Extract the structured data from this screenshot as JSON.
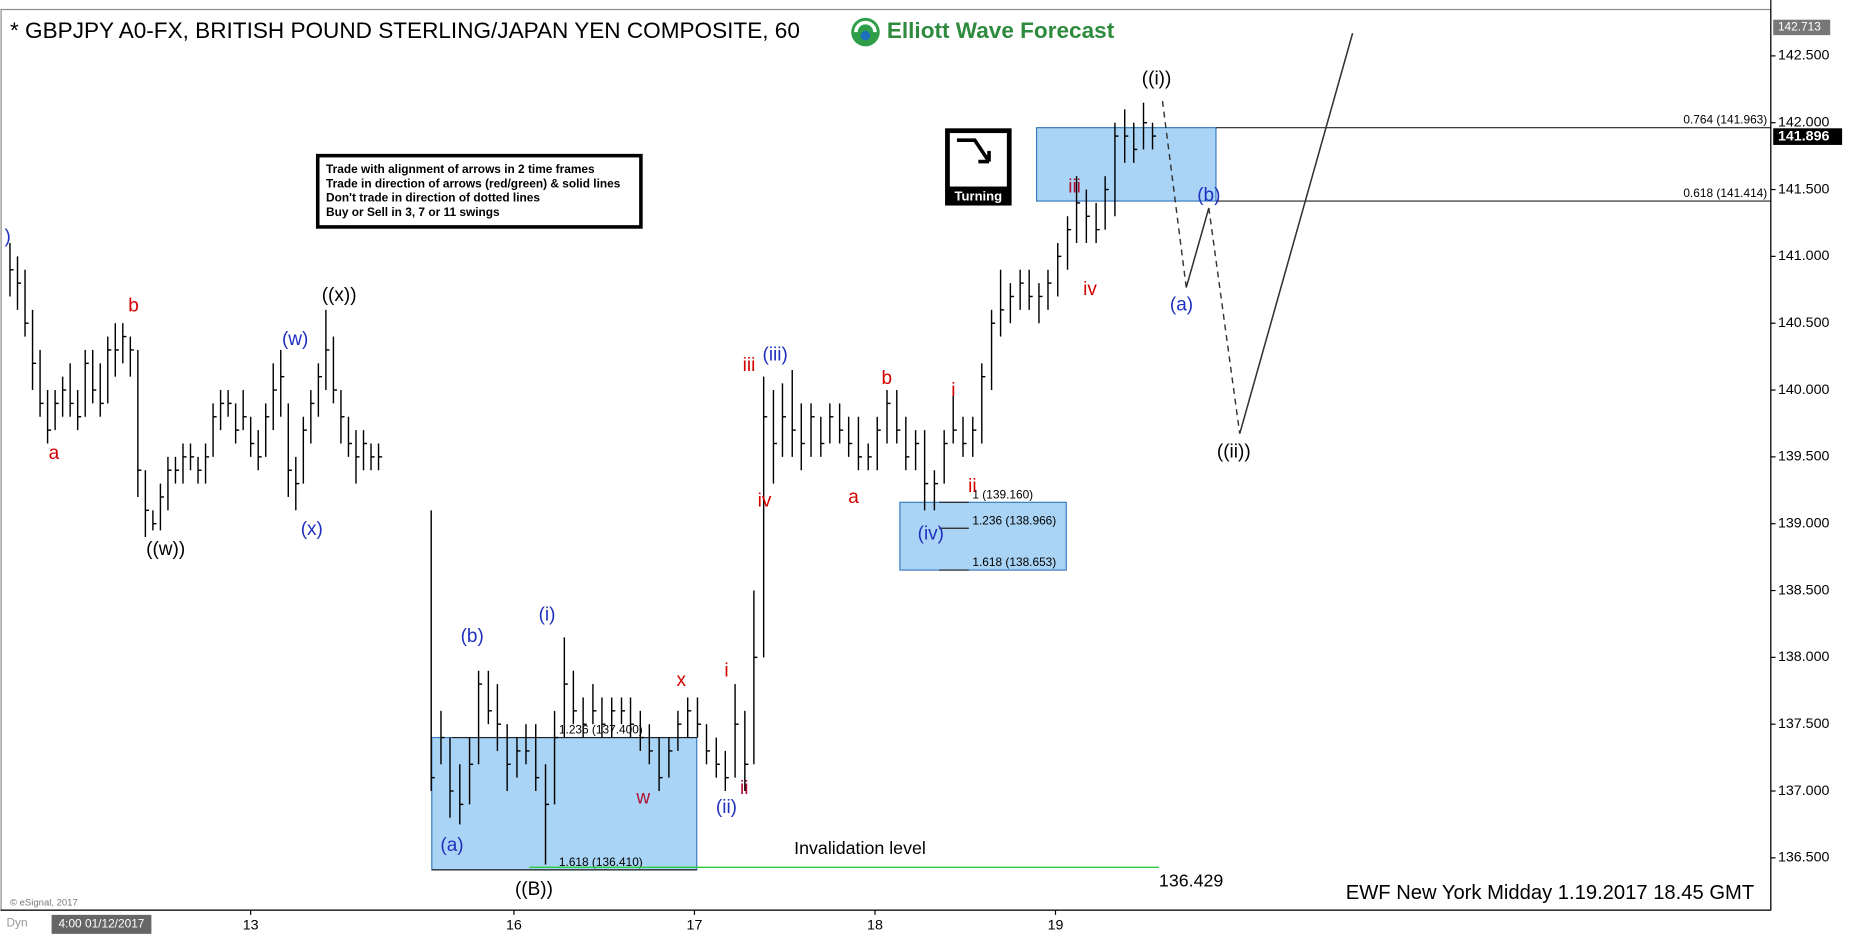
{
  "header": {
    "title": "* GBPJPY A0-FX, BRITISH POUND STERLING/JAPAN YEN COMPOSITE, 60",
    "logo": "Elliott Wave Forecast"
  },
  "rules": [
    "Trade with alignment of arrows in 2 time frames",
    "Trade in direction of arrows (red/green) & solid lines",
    "Don't trade in direction of dotted lines",
    "Buy or Sell in 3, 7 or 11 swings"
  ],
  "turning": "Turning",
  "footer": {
    "stamp": "EWF New York Midday 1.19.2017 18.45 GMT",
    "copyright": "© eSignal, 2017",
    "dyn": "Dyn",
    "start": "4:00 01/12/2017"
  },
  "chart_data": {
    "type": "ohlc",
    "x": [
      0,
      1,
      2,
      3,
      4,
      5,
      6,
      7,
      8,
      9,
      10,
      11,
      12,
      13,
      14,
      15,
      16,
      17,
      18,
      19,
      20,
      21,
      22,
      23,
      24,
      25,
      26,
      27,
      28,
      29,
      30,
      31,
      32,
      33,
      34,
      35,
      36,
      37,
      38,
      39,
      40,
      41,
      42,
      43,
      44,
      45,
      46,
      47,
      48,
      49,
      56.0,
      57.3,
      58.5,
      59.8,
      61.1,
      62.3,
      63.6,
      64.8,
      66.1,
      67.4,
      68.6,
      69.9,
      71.2,
      72.4,
      73.7,
      74.9,
      76.2,
      77.5,
      78.7,
      80.0,
      81.3,
      82.5,
      83.8,
      85.0,
      86.3,
      87.6,
      88.8,
      90.1,
      91.4,
      92.6,
      93.9,
      95.1,
      96.4,
      97.7,
      98.9,
      100.2,
      101.5,
      102.7,
      104.0,
      105.2,
      106.5,
      107.8,
      109.0,
      110.3,
      111.5,
      112.8,
      114.1,
      115.3,
      116.6,
      117.9,
      119.1,
      120.4,
      121.6,
      122.9,
      124.2,
      125.4,
      126.7,
      128.0,
      129.2,
      130.5,
      131.7,
      133.0,
      134.3,
      135.5,
      136.8,
      138.0,
      139.3,
      140.6,
      141.8,
      143.1,
      144.4,
      145.6,
      146.9,
      148.2,
      149.4,
      150.7,
      151.9
    ],
    "high": [
      141.1,
      141.0,
      140.9,
      140.6,
      140.3,
      140.0,
      140.0,
      140.1,
      140.2,
      140.0,
      140.3,
      140.3,
      140.2,
      140.4,
      140.5,
      140.5,
      140.4,
      140.3,
      139.4,
      139.1,
      139.3,
      139.5,
      139.5,
      139.6,
      139.6,
      139.5,
      139.6,
      139.9,
      140.0,
      140.0,
      139.9,
      140.0,
      139.8,
      139.7,
      139.9,
      140.2,
      140.3,
      139.9,
      139.5,
      139.8,
      140.0,
      140.2,
      140.6,
      140.4,
      140.0,
      139.8,
      139.7,
      139.7,
      139.6,
      139.6,
      139.1,
      137.6,
      137.4,
      137.2,
      137.4,
      137.9,
      137.9,
      137.8,
      137.5,
      137.4,
      137.5,
      137.5,
      137.2,
      137.6,
      138.15,
      137.9,
      137.7,
      137.8,
      137.7,
      137.7,
      137.7,
      137.7,
      137.6,
      137.5,
      137.4,
      137.4,
      137.6,
      137.7,
      137.7,
      137.5,
      137.4,
      137.3,
      137.8,
      137.6,
      138.5,
      140.1,
      140.0,
      140.05,
      140.15,
      139.9,
      139.9,
      139.8,
      139.9,
      139.9,
      139.8,
      139.8,
      139.6,
      139.8,
      140.0,
      140.0,
      139.8,
      139.7,
      139.7,
      139.4,
      139.7,
      140.0,
      139.8,
      139.8,
      140.2,
      140.6,
      140.9,
      140.8,
      140.9,
      140.9,
      140.8,
      140.9,
      141.1,
      141.3,
      141.6,
      141.5,
      141.4,
      141.6,
      142.0,
      142.1,
      142.0,
      142.15,
      142.0
    ],
    "low": [
      140.7,
      140.6,
      140.4,
      140.0,
      139.8,
      139.6,
      139.7,
      139.8,
      139.8,
      139.7,
      139.8,
      139.9,
      139.8,
      139.9,
      140.1,
      140.2,
      140.1,
      139.2,
      138.9,
      138.95,
      138.95,
      139.1,
      139.3,
      139.3,
      139.4,
      139.3,
      139.3,
      139.5,
      139.7,
      139.8,
      139.6,
      139.7,
      139.5,
      139.4,
      139.5,
      139.7,
      139.8,
      139.2,
      139.1,
      139.3,
      139.6,
      139.8,
      140.0,
      139.9,
      139.6,
      139.5,
      139.3,
      139.4,
      139.4,
      139.4,
      137.0,
      137.2,
      136.8,
      136.75,
      136.9,
      137.2,
      137.5,
      137.3,
      137.0,
      137.1,
      137.2,
      137.0,
      136.45,
      136.9,
      137.4,
      137.5,
      137.4,
      137.5,
      137.4,
      137.4,
      137.5,
      137.4,
      137.3,
      137.2,
      137.0,
      137.1,
      137.3,
      137.4,
      137.4,
      137.2,
      137.1,
      137.0,
      137.1,
      137.0,
      137.2,
      138.0,
      139.3,
      139.5,
      139.5,
      139.4,
      139.5,
      139.5,
      139.6,
      139.6,
      139.5,
      139.4,
      139.4,
      139.4,
      139.6,
      139.6,
      139.4,
      139.4,
      139.1,
      139.1,
      139.3,
      139.6,
      139.5,
      139.5,
      139.6,
      140.0,
      140.4,
      140.5,
      140.6,
      140.6,
      140.5,
      140.6,
      140.7,
      140.9,
      141.1,
      141.1,
      141.1,
      141.2,
      141.3,
      141.7,
      141.7,
      141.8,
      141.8
    ],
    "close": [
      140.9,
      140.8,
      140.5,
      140.2,
      139.9,
      139.7,
      139.9,
      140.0,
      139.9,
      139.8,
      140.2,
      140.0,
      139.9,
      140.3,
      140.3,
      140.4,
      140.3,
      139.4,
      139.1,
      139.0,
      139.2,
      139.4,
      139.4,
      139.5,
      139.5,
      139.4,
      139.5,
      139.8,
      139.9,
      139.9,
      139.7,
      139.8,
      139.6,
      139.5,
      139.8,
      140.0,
      140.1,
      139.4,
      139.3,
      139.7,
      139.9,
      140.1,
      140.3,
      140.0,
      139.8,
      139.6,
      139.5,
      139.6,
      139.5,
      139.5,
      137.1,
      137.4,
      137.0,
      136.9,
      137.2,
      137.8,
      137.6,
      137.5,
      137.2,
      137.3,
      137.3,
      137.1,
      136.9,
      137.4,
      137.8,
      137.6,
      137.5,
      137.6,
      137.5,
      137.6,
      137.6,
      137.5,
      137.4,
      137.3,
      137.1,
      137.3,
      137.5,
      137.6,
      137.5,
      137.3,
      137.2,
      137.1,
      137.5,
      137.2,
      138.0,
      139.8,
      139.6,
      139.8,
      139.7,
      139.6,
      139.8,
      139.6,
      139.8,
      139.7,
      139.6,
      139.5,
      139.5,
      139.7,
      139.9,
      139.7,
      139.5,
      139.6,
      139.3,
      139.3,
      139.6,
      139.7,
      139.6,
      139.7,
      140.1,
      140.5,
      140.6,
      140.7,
      140.8,
      140.7,
      140.7,
      140.8,
      141.0,
      141.2,
      141.4,
      141.3,
      141.2,
      141.5,
      141.9,
      141.9,
      141.8,
      142.0,
      141.9
    ],
    "xlim": [
      -1.26,
      234.1
    ],
    "ylim": [
      136.109,
      142.847
    ],
    "xticks": [
      {
        "value": 32,
        "label": "13"
      },
      {
        "value": 67,
        "label": "16"
      },
      {
        "value": 91,
        "label": "17"
      },
      {
        "value": 115,
        "label": "18"
      },
      {
        "value": 139,
        "label": "19"
      }
    ],
    "yticks": [
      {
        "value": 136.5,
        "label": "136.500"
      },
      {
        "value": 137,
        "label": "137.000"
      },
      {
        "value": 137.5,
        "label": "137.500"
      },
      {
        "value": 138,
        "label": "138.000"
      },
      {
        "value": 138.5,
        "label": "138.500"
      },
      {
        "value": 139,
        "label": "139.000"
      },
      {
        "value": 139.5,
        "label": "139.500"
      },
      {
        "value": 140,
        "label": "140.000"
      },
      {
        "value": 140.5,
        "label": "140.500"
      },
      {
        "value": 141,
        "label": "141.000"
      },
      {
        "value": 141.5,
        "label": "141.500"
      },
      {
        "value": 142,
        "label": "142.000"
      },
      {
        "value": 142.5,
        "label": "142.500"
      }
    ],
    "top_price": 142.713,
    "last_price": 141.896,
    "fib_levels": [
      {
        "value": 141.963,
        "label": "0.764 (141.963)"
      },
      {
        "value": 141.414,
        "label": "0.618 (141.414)"
      },
      {
        "value": 139.16,
        "label": "1 (139.160)"
      },
      {
        "value": 138.966,
        "label": "1.236 (138.966)"
      },
      {
        "value": 138.653,
        "label": "1.618 (138.653)"
      },
      {
        "value": 137.4,
        "label": "1.236 (137.400)"
      },
      {
        "value": 136.41,
        "label": "1.618 (136.410)"
      }
    ],
    "invalidation": {
      "text": "Invalidation level",
      "value": 136.429
    },
    "wave_labels": [
      {
        "text": "a",
        "color": "#d40000"
      },
      {
        "text": "b",
        "color": "#d40000"
      },
      {
        "text": "iii",
        "color": "#d40000"
      },
      {
        "text": "iv",
        "color": "#d40000"
      },
      {
        "text": "x",
        "color": "#d40000"
      },
      {
        "text": "w",
        "color": "#b01030"
      },
      {
        "text": "i",
        "color": "#d40000"
      },
      {
        "text": "ii",
        "color": "#b01030"
      },
      {
        "text": "a",
        "color": "#d40000"
      },
      {
        "text": "b",
        "color": "#d40000"
      },
      {
        "text": "i",
        "color": "#d40000"
      },
      {
        "text": "ii",
        "color": "#d40000"
      },
      {
        "text": "iii",
        "color": "#b01030"
      },
      {
        "text": "iv",
        "color": "#d40000"
      },
      {
        "text": ")",
        "color": "#1f2fbf"
      },
      {
        "text": "(w)",
        "color": "#1f2fbf"
      },
      {
        "text": "(x)",
        "color": "#1f2fbf"
      },
      {
        "text": "(a)",
        "color": "#1f2fbf"
      },
      {
        "text": "(b)",
        "color": "#1f2fbf"
      },
      {
        "text": "(i)",
        "color": "#1f2fbf"
      },
      {
        "text": "(ii)",
        "color": "#1f2fbf"
      },
      {
        "text": "(iii)",
        "color": "#1f2fbf"
      },
      {
        "text": "(iv)",
        "color": "#1f2fbf"
      },
      {
        "text": "(a)",
        "color": "#1f2fbf"
      },
      {
        "text": "(b)",
        "color": "#1f2fbf"
      },
      {
        "text": "((w))",
        "color": "#000000"
      },
      {
        "text": "((x))",
        "color": "#000000"
      },
      {
        "text": "((B))",
        "color": "#000000"
      },
      {
        "text": "((i))",
        "color": "#000000"
      },
      {
        "text": "((ii))",
        "color": "#000000"
      }
    ],
    "bar_color": "#000000",
    "zone_color": "#a9d4f5",
    "invalidation_color": "#2ecc40"
  }
}
